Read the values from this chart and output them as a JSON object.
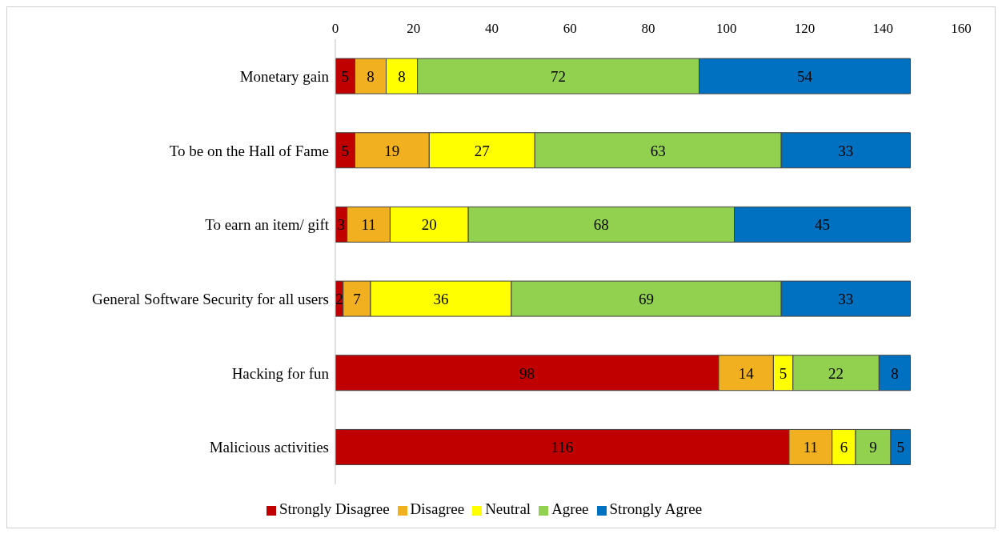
{
  "chart_data": {
    "type": "bar",
    "orientation": "horizontal",
    "stacked": true,
    "categories": [
      "Monetary gain",
      "To be on the Hall of Fame",
      "To earn an item/ gift",
      "General Software Security for all users",
      "Hacking for fun",
      "Malicious activities"
    ],
    "series": [
      {
        "name": "Strongly Disagree",
        "color": "#c00000",
        "values": [
          5,
          5,
          3,
          2,
          98,
          116
        ]
      },
      {
        "name": "Disagree",
        "color": "#f0b020",
        "values": [
          8,
          19,
          11,
          7,
          14,
          11
        ]
      },
      {
        "name": "Neutral",
        "color": "#ffff00",
        "values": [
          8,
          27,
          20,
          36,
          5,
          6
        ]
      },
      {
        "name": "Agree",
        "color": "#92d050",
        "values": [
          72,
          63,
          68,
          69,
          22,
          9
        ]
      },
      {
        "name": "Strongly Agree",
        "color": "#0070c0",
        "values": [
          54,
          33,
          45,
          33,
          8,
          5
        ]
      }
    ],
    "xlim": [
      0,
      160
    ],
    "xticks": [
      0,
      20,
      40,
      60,
      80,
      100,
      120,
      140,
      160
    ],
    "grid": false,
    "legend": "bottom",
    "data_labels": true
  }
}
